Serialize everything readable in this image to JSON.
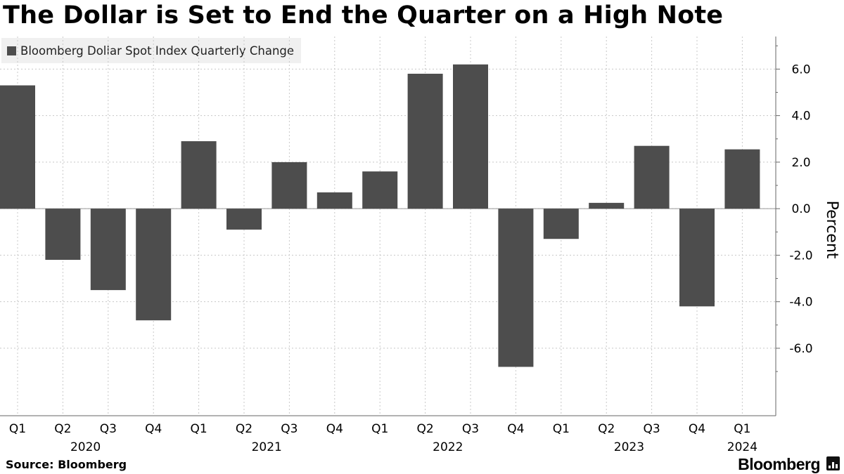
{
  "title": "The Dollar is Set to End the Quarter on a High Note",
  "legend_label": "Bloomberg Dollar Spot Index Quarterly Change",
  "source": "Source: Bloomberg",
  "brand": "Bloomberg",
  "colors": {
    "bar": "#4d4d4d",
    "grid": "#c8c8c8",
    "axis": "#666666"
  },
  "chart_data": {
    "type": "bar",
    "title": "The Dollar is Set to End the Quarter on a High Note",
    "series": [
      {
        "name": "Bloomberg Dollar Spot Index Quarterly Change",
        "values": [
          5.3,
          -2.2,
          -3.5,
          -4.8,
          2.9,
          -0.9,
          2.0,
          0.7,
          1.6,
          5.8,
          6.2,
          -6.8,
          -1.3,
          0.25,
          2.7,
          -4.2,
          2.55
        ]
      }
    ],
    "categories": [
      "Q1",
      "Q2",
      "Q3",
      "Q4",
      "Q1",
      "Q2",
      "Q3",
      "Q4",
      "Q1",
      "Q2",
      "Q3",
      "Q4",
      "Q1",
      "Q2",
      "Q3",
      "Q4",
      "Q1"
    ],
    "years": [
      {
        "label": "2020",
        "start": 0,
        "end": 3
      },
      {
        "label": "2021",
        "start": 4,
        "end": 7
      },
      {
        "label": "2022",
        "start": 8,
        "end": 11
      },
      {
        "label": "2023",
        "start": 12,
        "end": 15
      },
      {
        "label": "2024",
        "start": 16,
        "end": 16
      }
    ],
    "yticks": [
      6,
      4,
      2,
      0,
      -2,
      -4,
      -6
    ],
    "ytick_labels": [
      "6.0",
      "4.0",
      "2.0",
      "0.0",
      "-2.0",
      "-4.0",
      "-6.0"
    ],
    "ylim": [
      -8.9,
      7.4
    ],
    "ylabel": "Percent",
    "xlabel": "",
    "grid": true,
    "legend_position": "top-left"
  }
}
